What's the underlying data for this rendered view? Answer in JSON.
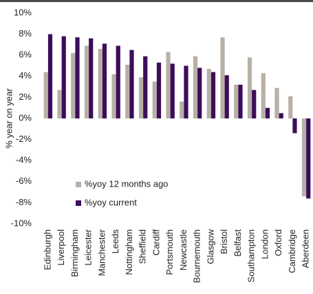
{
  "chart_data": {
    "type": "bar",
    "y_label": "% year on year",
    "categories": [
      "Edinburgh",
      "Liverpool",
      "Birmingham",
      "Leicester",
      "Manchester",
      "Leeds",
      "Nottingham",
      "Sheffield",
      "Cardiff",
      "Portsmouth",
      "Newcastle",
      "Bournemouth",
      "Glasgow",
      "Bristol",
      "Belfast",
      "Southampton",
      "London",
      "Oxford",
      "Cambridge",
      "Aberdeen"
    ],
    "series": [
      {
        "name": "%yoy 12 months ago",
        "color": "#b8b0a6",
        "values": [
          4.4,
          2.7,
          6.2,
          6.9,
          6.6,
          4.2,
          5.1,
          3.9,
          3.5,
          6.3,
          1.6,
          5.9,
          4.7,
          7.7,
          3.2,
          5.8,
          4.3,
          2.9,
          2.1,
          -7.4
        ]
      },
      {
        "name": "%yoy current",
        "color": "#3c0d5a",
        "values": [
          8.0,
          7.8,
          7.7,
          7.6,
          7.1,
          6.9,
          6.5,
          5.9,
          5.3,
          5.2,
          5.0,
          4.8,
          4.4,
          4.1,
          3.2,
          2.7,
          1.0,
          0.5,
          -1.4,
          -7.6
        ]
      }
    ],
    "ylim": [
      -10,
      10
    ],
    "yticks": [
      {
        "value": -10,
        "label": "-10%"
      },
      {
        "value": -8,
        "label": "-8%"
      },
      {
        "value": -6,
        "label": "-6%"
      },
      {
        "value": -4,
        "label": "-4%"
      },
      {
        "value": -2,
        "label": "-2%"
      },
      {
        "value": 0,
        "label": "0%"
      },
      {
        "value": 2,
        "label": "2%"
      },
      {
        "value": 4,
        "label": "4%"
      },
      {
        "value": 6,
        "label": "6%"
      },
      {
        "value": 8,
        "label": "8%"
      },
      {
        "value": 10,
        "label": "10%"
      }
    ],
    "legend": "lower-left"
  }
}
